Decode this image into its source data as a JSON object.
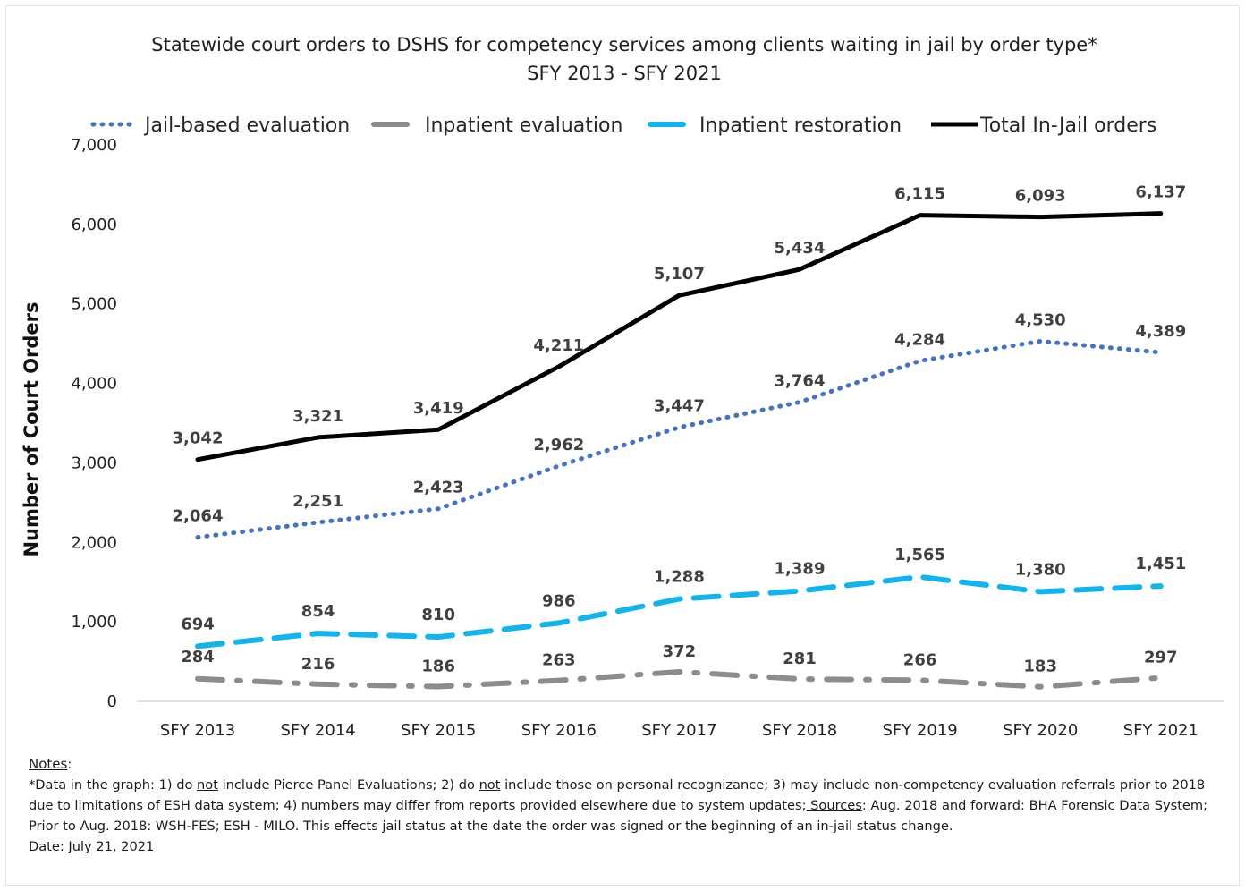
{
  "chart_data": {
    "type": "line",
    "title": "Statewide court orders to DSHS for competency services among clients waiting in jail by order type*",
    "subtitle": "SFY 2013 - SFY 2021",
    "ylabel": "Number of Court Orders",
    "xlabel": "",
    "ylim": [
      0,
      7000
    ],
    "yticks": [
      "0",
      "1,000",
      "2,000",
      "3,000",
      "4,000",
      "5,000",
      "6,000",
      "7,000"
    ],
    "grid": false,
    "legend_position": "top",
    "categories": [
      "SFY 2013",
      "SFY 2014",
      "SFY 2015",
      "SFY 2016",
      "SFY 2017",
      "SFY 2018",
      "SFY 2019",
      "SFY 2020",
      "SFY 2021"
    ],
    "series": [
      {
        "name": "Jail-based evaluation",
        "style": "dotted",
        "color": "#4472c4",
        "values": [
          2064,
          2251,
          2423,
          2962,
          3447,
          3764,
          4284,
          4530,
          4389
        ],
        "labels": [
          "2,064",
          "2,251",
          "2,423",
          "2,962",
          "3,447",
          "3,764",
          "4,284",
          "4,530",
          "4,389"
        ]
      },
      {
        "name": "Inpatient evaluation",
        "style": "long-dash-dot",
        "color": "#8c8c8c",
        "values": [
          284,
          216,
          186,
          263,
          372,
          281,
          266,
          183,
          297
        ],
        "labels": [
          "284",
          "216",
          "186",
          "263",
          "372",
          "281",
          "266",
          "183",
          "297"
        ]
      },
      {
        "name": "Inpatient restoration",
        "style": "dashed",
        "color": "#11b4ec",
        "values": [
          694,
          854,
          810,
          986,
          1288,
          1389,
          1565,
          1380,
          1451
        ],
        "labels": [
          "694",
          "854",
          "810",
          "986",
          "1,288",
          "1,389",
          "1,565",
          "1,380",
          "1,451"
        ]
      },
      {
        "name": "Total In-Jail orders",
        "style": "solid",
        "color": "#000000",
        "values": [
          3042,
          3321,
          3419,
          4211,
          5107,
          5434,
          6115,
          6093,
          6137
        ],
        "labels": [
          "3,042",
          "3,321",
          "3,419",
          "4,211",
          "5,107",
          "5,434",
          "6,115",
          "6,093",
          "6,137"
        ]
      }
    ]
  },
  "notes": {
    "heading": "Notes",
    "heading_colon": ":",
    "line1_a": "*Data in the graph: 1) do ",
    "line1_not1": "not",
    "line1_b": " include Pierce Panel Evaluations; 2) do ",
    "line1_not2": "not",
    "line1_c": " include those on personal recognizance; 3) may include non-competency evaluation referrals prior to 2018 due to limitations of ESH data system; 4) numbers may differ from reports provided elsewhere due to system updates;",
    "sources_label": " Sources",
    "line1_d": ": Aug. 2018 and forward: BHA Forensic Data System; Prior to Aug. 2018: WSH-FES; ESH - MILO. This effects jail status at the date the order was signed or the beginning of an in-jail status change.",
    "date": "Date: July 21, 2021"
  }
}
